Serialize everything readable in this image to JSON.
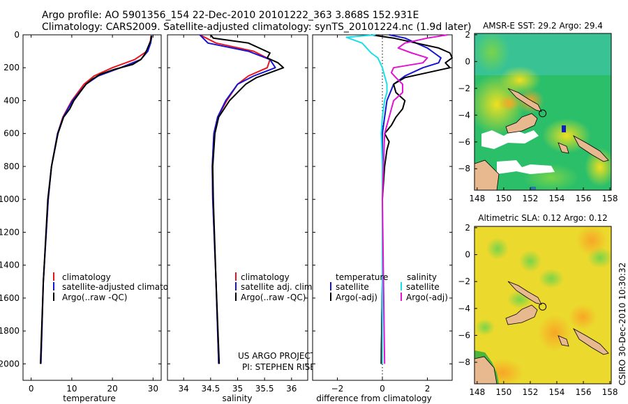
{
  "header": {
    "title_line1": "Argo profile: AO 5901356_154 22-Dec-2010 20101222_363 3.868S 152.931E",
    "title_line2": "Climatology: CARS2009. Satellite-adjusted climatology: synTS_20101224.nc (1.9d later)"
  },
  "side_label": "CSIRO 30-Dec-2010 10:30:32",
  "colors": {
    "climatology": "#e8141e",
    "satellite": "#1414d2",
    "argo": "#000000",
    "cyan": "#18e0ea",
    "magenta": "#e014d2"
  },
  "chart_data": [
    {
      "id": "temperature",
      "type": "line",
      "xlabel": "temperature",
      "ylabel": "",
      "xlim": [
        -2,
        32
      ],
      "ylim": [
        2100,
        0
      ],
      "xticks": [
        0,
        10,
        20,
        30
      ],
      "yticks": [
        0,
        200,
        400,
        600,
        800,
        1000,
        1200,
        1400,
        1600,
        1800,
        2000
      ],
      "legend": [
        "climatology",
        "satellite-adjusted climatology",
        "Argo(..raw -QC)"
      ],
      "series": [
        {
          "name": "climatology",
          "color": "#e8141e",
          "depth": [
            5,
            50,
            100,
            150,
            200,
            250,
            300,
            400,
            500,
            600,
            800,
            1000,
            1500,
            2000
          ],
          "values": [
            29.5,
            29.3,
            28.5,
            25.5,
            20.0,
            15.5,
            13.0,
            10.0,
            7.8,
            6.5,
            5.0,
            4.2,
            3.0,
            2.4
          ]
        },
        {
          "name": "satellite-adjusted climatology",
          "color": "#1414d2",
          "depth": [
            5,
            50,
            100,
            150,
            200,
            250,
            300,
            400,
            500,
            600,
            800,
            1000,
            1500,
            2000
          ],
          "values": [
            29.7,
            29.4,
            28.7,
            27.0,
            22.0,
            16.5,
            13.5,
            10.2,
            7.9,
            6.5,
            5.0,
            4.2,
            3.0,
            2.4
          ]
        },
        {
          "name": "Argo(..raw -QC)",
          "color": "#000000",
          "depth": [
            5,
            30,
            60,
            90,
            120,
            150,
            180,
            210,
            240,
            270,
            300,
            350,
            400,
            450,
            500,
            600,
            800,
            1000,
            1500,
            2000
          ],
          "values": [
            29.6,
            29.5,
            29.0,
            28.5,
            27.9,
            27.0,
            25.0,
            20.5,
            17.0,
            15.0,
            13.5,
            12.0,
            10.5,
            9.5,
            8.0,
            6.6,
            5.0,
            4.1,
            3.0,
            2.3
          ]
        }
      ]
    },
    {
      "id": "salinity",
      "type": "line",
      "xlabel": "salinity",
      "ylabel": "",
      "xlim": [
        33.7,
        36.3
      ],
      "ylim": [
        2100,
        0
      ],
      "xticks": [
        34,
        34.5,
        35,
        35.5,
        36
      ],
      "xticklabels": [
        "34",
        "34.5",
        "35",
        "35.5",
        "36"
      ],
      "legend": [
        "climatology",
        "satellite adj. clim.",
        "Argo(..raw -QC)"
      ],
      "annotation": [
        "US ARGO PROJECT",
        "PI: STEPHEN RISER"
      ],
      "series": [
        {
          "name": "climatology",
          "color": "#e8141e",
          "depth": [
            0,
            50,
            100,
            150,
            200,
            250,
            300,
            400,
            500,
            600,
            800,
            1000,
            1500,
            2000
          ],
          "values": [
            34.3,
            34.6,
            35.3,
            35.6,
            35.55,
            35.2,
            35.0,
            34.8,
            34.63,
            34.56,
            34.53,
            34.54,
            34.6,
            34.65
          ]
        },
        {
          "name": "satellite adj. clim.",
          "color": "#1414d2",
          "depth": [
            0,
            50,
            100,
            150,
            200,
            250,
            300,
            400,
            500,
            600,
            800,
            1000,
            1500,
            2000
          ],
          "values": [
            34.3,
            34.45,
            35.2,
            35.6,
            35.7,
            35.3,
            35.0,
            34.78,
            34.63,
            34.56,
            34.53,
            34.54,
            34.6,
            34.65
          ]
        },
        {
          "name": "Argo(..raw -QC)",
          "color": "#000000",
          "depth": [
            0,
            20,
            50,
            80,
            110,
            140,
            170,
            200,
            230,
            260,
            300,
            350,
            400,
            450,
            500,
            600,
            800,
            1000,
            1500,
            2000
          ],
          "values": [
            34.5,
            34.55,
            35.2,
            35.4,
            35.6,
            35.55,
            35.75,
            35.85,
            35.6,
            35.35,
            35.15,
            35.0,
            34.85,
            34.75,
            34.65,
            34.58,
            34.54,
            34.55,
            34.6,
            34.66
          ]
        }
      ]
    },
    {
      "id": "difference",
      "type": "line",
      "xlabel": "difference from climatology",
      "ylabel": "",
      "xlim": [
        -3.1,
        3.1
      ],
      "ylim": [
        2100,
        0
      ],
      "xticks": [
        -2,
        0,
        2
      ],
      "xticklabels": [
        "−2",
        "0",
        "2"
      ],
      "legend_headers": [
        "temperature",
        "salinity"
      ],
      "legend_left": [
        "satellite",
        "Argo(-adj)"
      ],
      "legend_right": [
        "satellite",
        "Argo(-adj)"
      ],
      "series": [
        {
          "name": "temperature satellite",
          "color": "#1414d2",
          "depth": [
            0,
            20,
            50,
            80,
            110,
            140,
            170,
            200,
            250,
            300,
            400,
            500,
            600,
            800,
            1000,
            1500,
            2000
          ],
          "values": [
            0.3,
            1.0,
            1.5,
            2.0,
            2.3,
            2.6,
            2.5,
            1.8,
            1.0,
            0.5,
            0.2,
            0.1,
            0.0,
            0.0,
            0.0,
            0.0,
            -0.05
          ]
        },
        {
          "name": "temperature Argo(-adj)",
          "color": "#000000",
          "depth": [
            0,
            20,
            50,
            80,
            110,
            140,
            170,
            200,
            230,
            260,
            300,
            350,
            400,
            450,
            500,
            550,
            600,
            650,
            700,
            800,
            900,
            1000,
            1500,
            2000
          ],
          "values": [
            -0.5,
            0.5,
            1.5,
            2.5,
            3.0,
            3.1,
            2.8,
            3.0,
            2.0,
            1.0,
            0.5,
            0.6,
            1.0,
            0.9,
            0.6,
            0.4,
            0.1,
            0.3,
            0.2,
            0.1,
            0.05,
            0.0,
            0.0,
            -0.05
          ]
        },
        {
          "name": "salinity satellite",
          "color": "#18e0ea",
          "depth": [
            0,
            15,
            30,
            50,
            80,
            110,
            140,
            170,
            200,
            250,
            300,
            350,
            400,
            500,
            600,
            800,
            1000,
            1500,
            2000
          ],
          "values": [
            -0.3,
            -1.6,
            -1.3,
            -0.9,
            -0.7,
            -0.5,
            -0.2,
            -0.1,
            0.0,
            0.1,
            0.2,
            0.2,
            0.1,
            0.0,
            -0.05,
            0.0,
            0.0,
            0.0,
            0.0
          ]
        },
        {
          "name": "salinity Argo(-adj)",
          "color": "#e014d2",
          "depth": [
            0,
            20,
            50,
            80,
            110,
            140,
            170,
            200,
            230,
            260,
            300,
            350,
            400,
            500,
            600,
            800,
            1000,
            1500,
            2000
          ],
          "values": [
            2.9,
            2.0,
            1.0,
            0.7,
            1.3,
            2.0,
            1.8,
            0.5,
            0.4,
            0.6,
            0.9,
            0.9,
            0.5,
            0.3,
            0.1,
            0.05,
            0.0,
            0.05,
            0.1
          ]
        }
      ]
    },
    {
      "id": "sst_map",
      "type": "heatmap",
      "title": "AMSR-E SST: 29.2 Argo: 29.4",
      "xlim": [
        147.8,
        158.1
      ],
      "ylim": [
        -9.6,
        2.1
      ],
      "xticks": [
        148,
        150,
        152,
        154,
        156,
        158
      ],
      "yticks": [
        2,
        0,
        -2,
        -4,
        -6,
        -8
      ],
      "yticklabels": [
        "2",
        "0",
        "−2",
        "−4",
        "−6",
        "−8"
      ],
      "profile_location": [
        152.931,
        -3.868
      ]
    },
    {
      "id": "sla_map",
      "type": "heatmap",
      "title": "Altimetric SLA: 0.12 Argo: 0.12",
      "xlim": [
        147.8,
        158.1
      ],
      "ylim": [
        -9.6,
        2.1
      ],
      "xticks": [
        148,
        150,
        152,
        154,
        156,
        158
      ],
      "yticks": [
        2,
        0,
        -2,
        -4,
        -6,
        -8
      ],
      "yticklabels": [
        "2",
        "0",
        "−2",
        "−4",
        "−6",
        "−8"
      ],
      "profile_location": [
        152.931,
        -3.868
      ]
    }
  ]
}
